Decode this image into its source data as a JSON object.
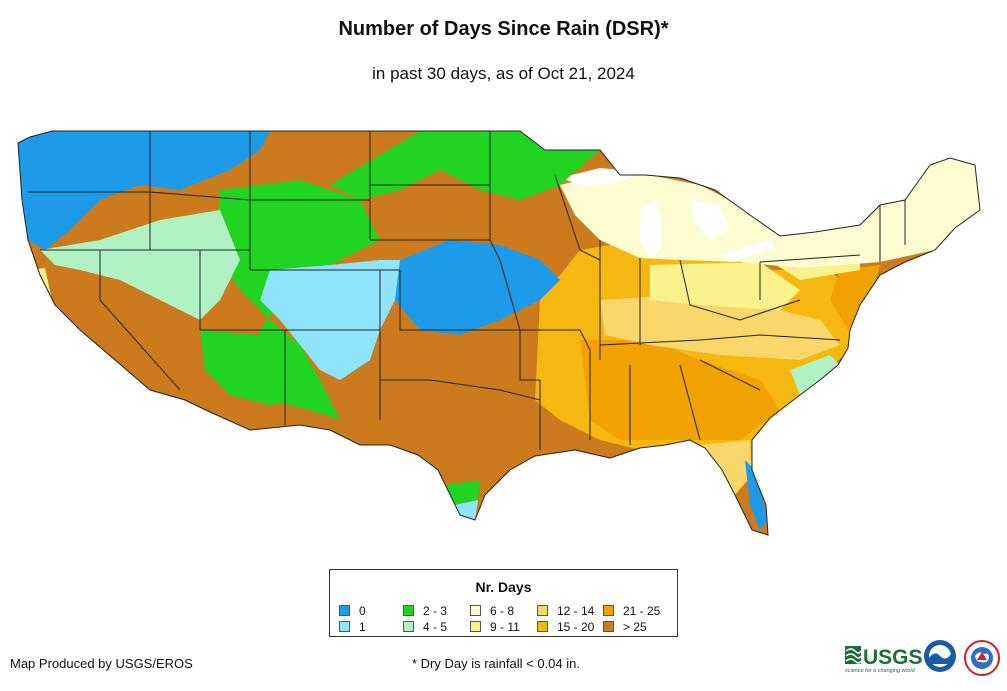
{
  "header": {
    "title": "Number of Days Since Rain (DSR)*",
    "subtitle": "in past 30 days, as of Oct 21, 2024"
  },
  "legend": {
    "title": "Nr. Days",
    "items": [
      {
        "label": "0",
        "color": "#1e9be8"
      },
      {
        "label": "1",
        "color": "#8fe3fb"
      },
      {
        "label": "2 - 3",
        "color": "#22d422"
      },
      {
        "label": "4 - 5",
        "color": "#b0f2c4"
      },
      {
        "label": "6 - 8",
        "color": "#fdfcd0"
      },
      {
        "label": "9 - 11",
        "color": "#f9f18c"
      },
      {
        "label": "12 - 14",
        "color": "#fad76a"
      },
      {
        "label": "15 - 20",
        "color": "#f6b70f"
      },
      {
        "label": "21 - 25",
        "color": "#f2a200"
      },
      {
        "label": "> 25",
        "color": "#cc7a1e"
      }
    ]
  },
  "footer": {
    "credit": "Map Produced by USGS/EROS",
    "footnote": "* Dry Day is rainfall < 0.04 in.",
    "usgs_logo_text": "USGS",
    "usgs_tagline": "science for a changing world"
  }
}
